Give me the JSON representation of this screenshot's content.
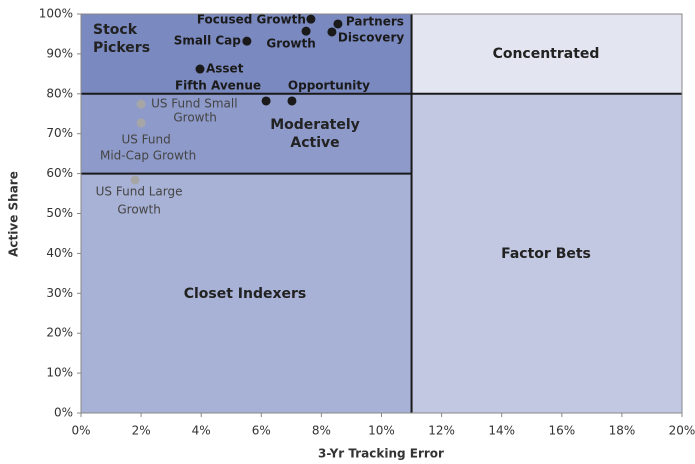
{
  "chart_data": {
    "type": "scatter",
    "xlabel": "3-Yr Tracking Error",
    "ylabel": "Active Share",
    "xlim": [
      0,
      20
    ],
    "ylim": [
      0,
      100
    ],
    "xticks": [
      {
        "value": 0,
        "label": "0%"
      },
      {
        "value": 2,
        "label": "2%"
      },
      {
        "value": 4,
        "label": "4%"
      },
      {
        "value": 6,
        "label": "6%"
      },
      {
        "value": 8,
        "label": "8%"
      },
      {
        "value": 10,
        "label": "10%"
      },
      {
        "value": 12,
        "label": "12%"
      },
      {
        "value": 14,
        "label": "14%"
      },
      {
        "value": 16,
        "label": "16%"
      },
      {
        "value": 18,
        "label": "18%"
      },
      {
        "value": 20,
        "label": "20%"
      }
    ],
    "yticks": [
      {
        "value": 0,
        "label": "0%"
      },
      {
        "value": 10,
        "label": "10%"
      },
      {
        "value": 20,
        "label": "20%"
      },
      {
        "value": 30,
        "label": "30%"
      },
      {
        "value": 40,
        "label": "40%"
      },
      {
        "value": 50,
        "label": "50%"
      },
      {
        "value": 60,
        "label": "60%"
      },
      {
        "value": 70,
        "label": "70%"
      },
      {
        "value": 80,
        "label": "80%"
      },
      {
        "value": 90,
        "label": "90%"
      },
      {
        "value": 100,
        "label": "100%"
      }
    ],
    "regions": [
      {
        "name": [
          "Closet Indexers"
        ],
        "x": [
          0,
          11
        ],
        "y": [
          0,
          60
        ],
        "color": "#a8b2d6"
      },
      {
        "name": [
          "Moderately",
          "Active"
        ],
        "x": [
          0,
          11
        ],
        "y": [
          60,
          80
        ],
        "color": "#8e9bca"
      },
      {
        "name": [
          "Stock",
          "Pickers"
        ],
        "x": [
          0,
          11
        ],
        "y": [
          80,
          100
        ],
        "color": "#7a89bf"
      },
      {
        "name": [
          "Concentrated"
        ],
        "x": [
          11,
          20
        ],
        "y": [
          80,
          100
        ],
        "color": "#e3e5f1"
      },
      {
        "name": [
          "Factor Bets"
        ],
        "x": [
          11,
          20
        ],
        "y": [
          0,
          80
        ],
        "color": "#c2c8e2"
      }
    ],
    "points": [
      {
        "label": [
          "Focused Growth"
        ],
        "x": 7.65,
        "y": 98.7,
        "color": "#1a1a1a"
      },
      {
        "label": [
          "Partners"
        ],
        "x": 8.55,
        "y": 97.5,
        "color": "#1a1a1a"
      },
      {
        "label": [
          "Growth"
        ],
        "x": 7.49,
        "y": 95.7,
        "color": "#1a1a1a"
      },
      {
        "label": [
          "Discovery"
        ],
        "x": 8.35,
        "y": 95.5,
        "color": "#1a1a1a"
      },
      {
        "label": [
          "Small Cap"
        ],
        "x": 5.52,
        "y": 93.2,
        "color": "#1a1a1a"
      },
      {
        "label": [
          "Asset",
          "Fifth Avenue"
        ],
        "x": 3.96,
        "y": 86.2,
        "color": "#1a1a1a"
      },
      {
        "x": 6.16,
        "y": 78.2,
        "color": "#1a1a1a"
      },
      {
        "label": [
          "Opportunity"
        ],
        "x": 7.02,
        "y": 78.2,
        "color": "#1a1a1a"
      },
      {
        "label": [
          "US Fund Small",
          "Growth"
        ],
        "x": 2.0,
        "y": 77.4,
        "color": "#a6a6a6"
      },
      {
        "label": [
          "US Fund",
          "Mid-Cap Growth"
        ],
        "x": 2.0,
        "y": 72.7,
        "color": "#a6a6a6"
      },
      {
        "label": [
          "US Fund Large",
          "Growth"
        ],
        "x": 1.8,
        "y": 58.4,
        "color": "#a6a6a6"
      }
    ]
  }
}
